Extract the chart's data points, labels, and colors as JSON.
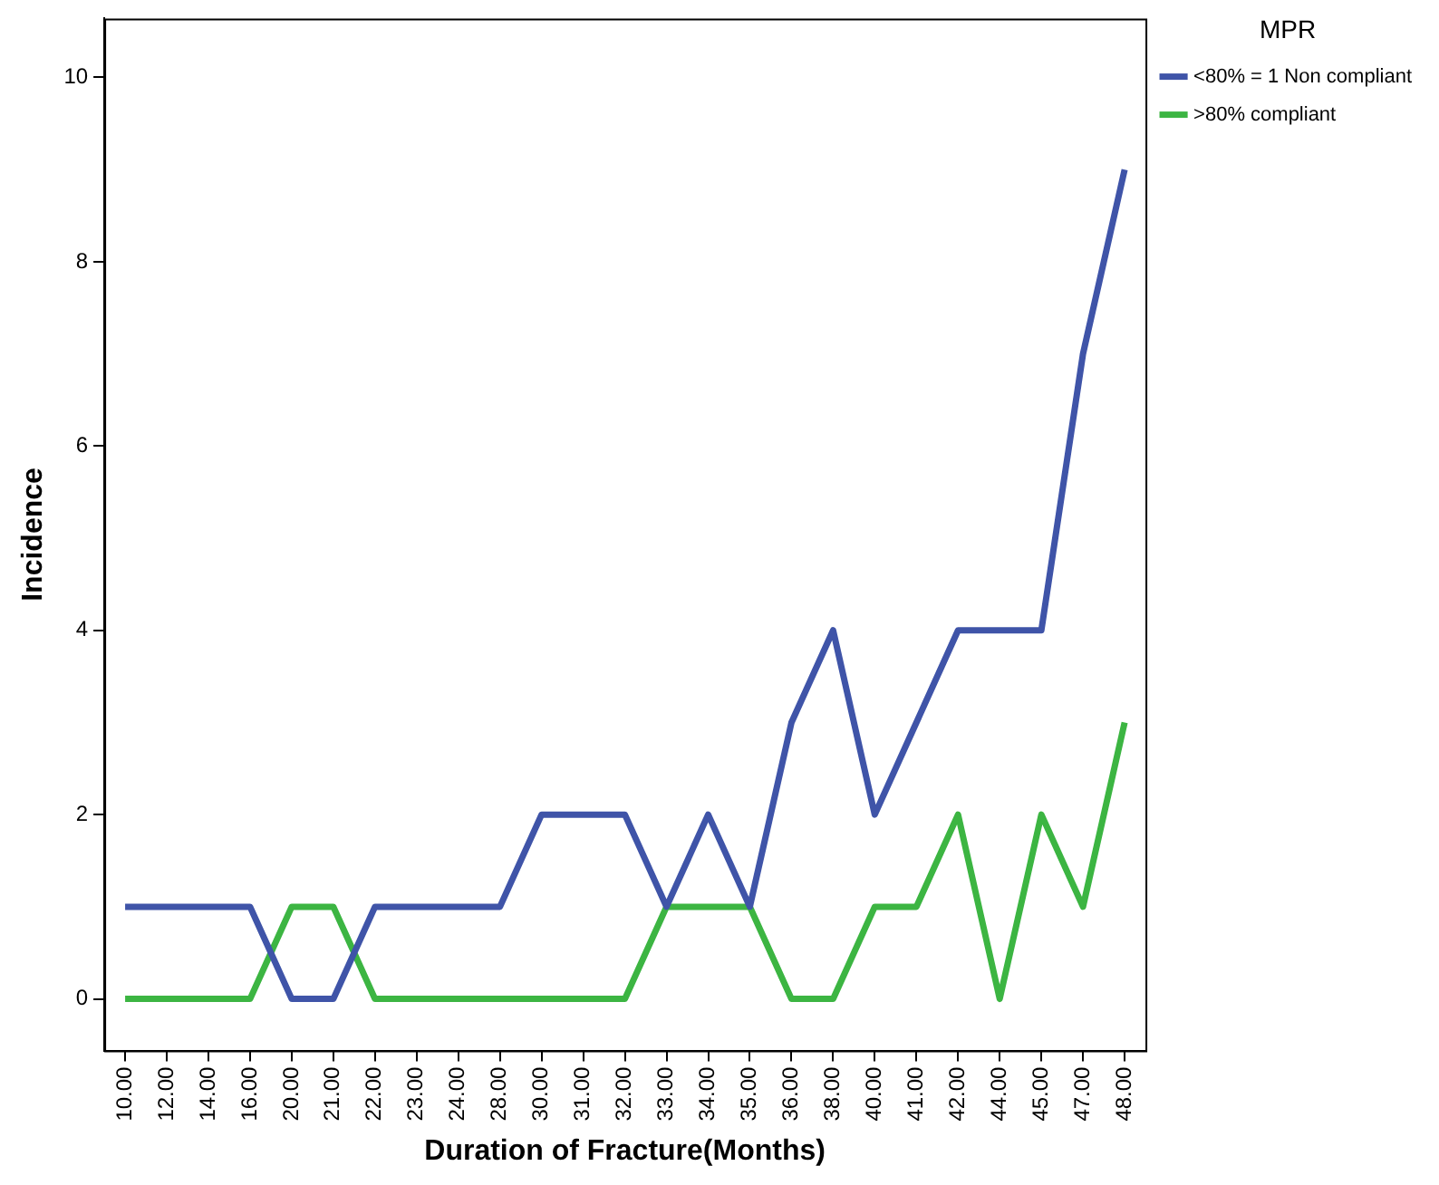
{
  "chart_data": {
    "type": "line",
    "xlabel": "Duration of Fracture(Months)",
    "ylabel": "Incidence",
    "legend_title": "MPR",
    "legend": "top right",
    "grid": false,
    "marker": "none",
    "line_style": "solid",
    "categories": [
      "10.00",
      "12.00",
      "14.00",
      "16.00",
      "20.00",
      "21.00",
      "22.00",
      "23.00",
      "24.00",
      "28.00",
      "30.00",
      "31.00",
      "32.00",
      "33.00",
      "34.00",
      "35.00",
      "36.00",
      "38.00",
      "40.00",
      "41.00",
      "42.00",
      "44.00",
      "45.00",
      "47.00",
      "48.00"
    ],
    "ylim": [
      -0.56,
      10.64
    ],
    "yticks": [
      0,
      2,
      4,
      6,
      8,
      10
    ],
    "series": [
      {
        "name": "<80% = 1 Non compliant",
        "color": "#3f54a8",
        "values": [
          1,
          1,
          1,
          1,
          0,
          0,
          1,
          1,
          1,
          1,
          2,
          2,
          2,
          1,
          2,
          1,
          3,
          4,
          2,
          3,
          4,
          4,
          4,
          7,
          9
        ]
      },
      {
        "name": ">80% compliant",
        "color": "#3cb542",
        "values": [
          0,
          0,
          0,
          0,
          1,
          1,
          0,
          0,
          0,
          0,
          0,
          0,
          0,
          1,
          1,
          1,
          0,
          0,
          1,
          1,
          2,
          0,
          2,
          1,
          3
        ]
      }
    ]
  }
}
